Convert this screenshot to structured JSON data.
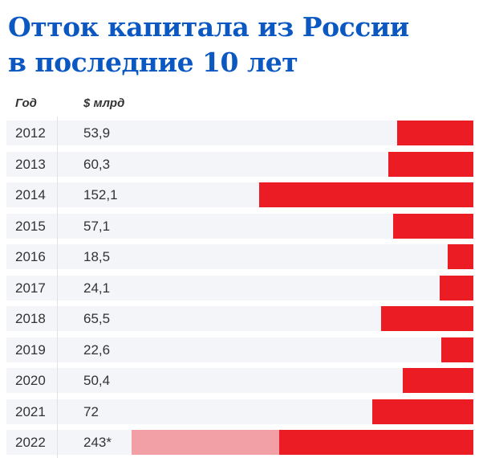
{
  "title_line1": "Отток капитала из России",
  "title_line2": "в последние 10 лет",
  "chart_data": {
    "type": "bar",
    "orientation": "horizontal",
    "column_headers": [
      "Год",
      "$ млрд"
    ],
    "categories": [
      "2012",
      "2013",
      "2014",
      "2015",
      "2016",
      "2017",
      "2018",
      "2019",
      "2020",
      "2021",
      "2022"
    ],
    "labels": [
      "53,9",
      "60,3",
      "152,1",
      "57,1",
      "18,5",
      "24,1",
      "65,5",
      "22,6",
      "50,4",
      "72",
      "243*"
    ],
    "values": [
      53.9,
      60.3,
      152.1,
      57.1,
      18.5,
      24.1,
      65.5,
      22.6,
      50.4,
      72,
      243
    ],
    "highlighted_portion_2022": 138,
    "colors": {
      "bar": "#ec1c24",
      "bar_light": "#f2a0a6",
      "title": "#0b58c2",
      "row_bg": "#f4f5f8"
    }
  }
}
